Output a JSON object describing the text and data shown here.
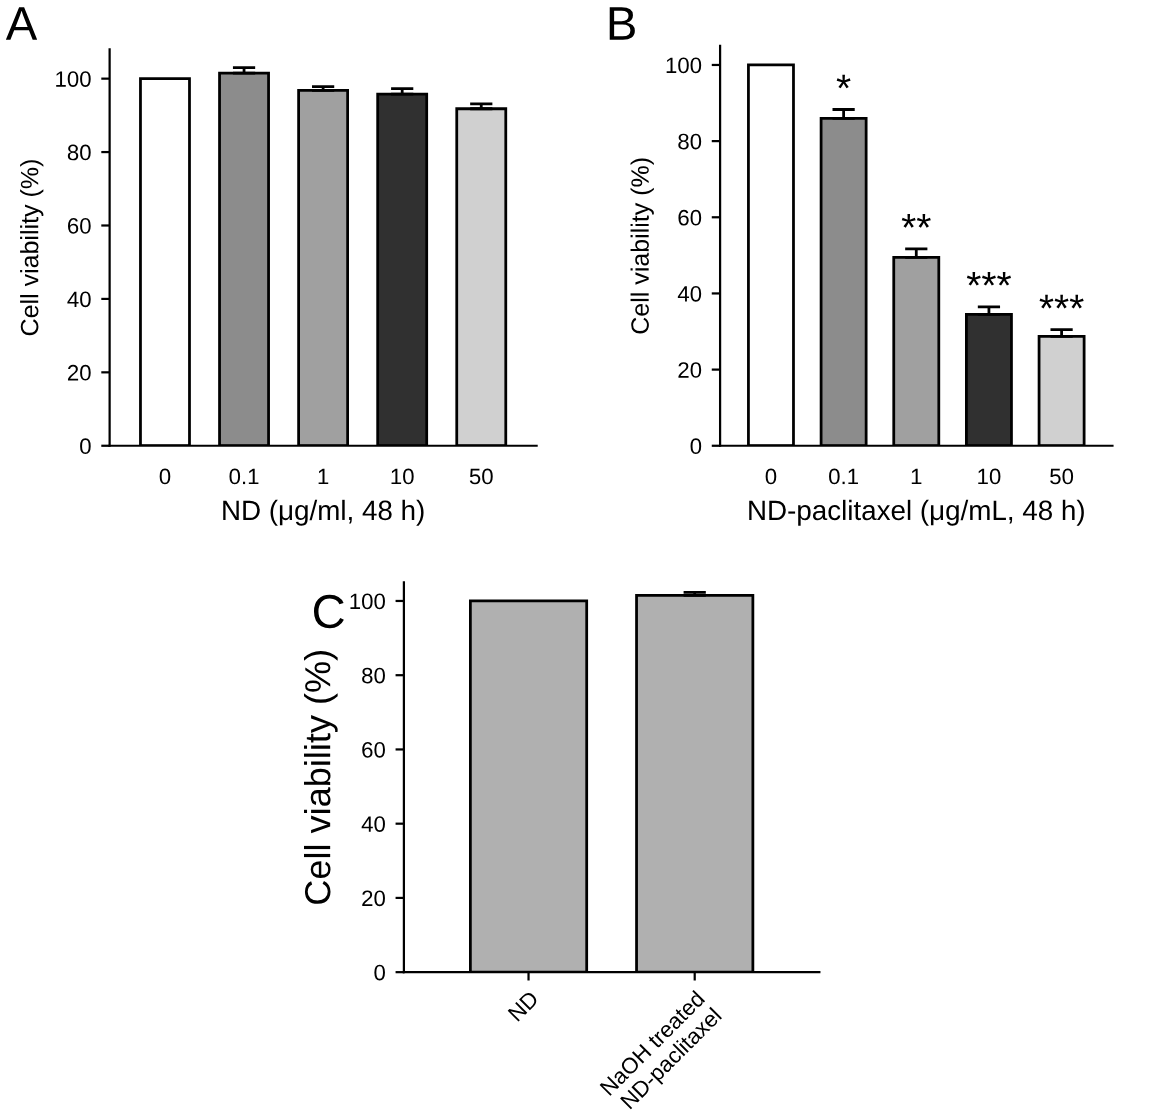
{
  "chart_data": [
    {
      "type": "bar",
      "title": "A",
      "xlabel": "ND (μg/ml, 48 h)",
      "ylabel": "Cell viability (%)",
      "categories": [
        "0",
        "0.1",
        "1",
        "10",
        "50"
      ],
      "values": [
        100,
        101.5,
        96.8,
        95.8,
        91.8
      ],
      "errors": [
        null,
        1.5,
        1,
        1.5,
        1.3
      ],
      "colors": [
        "#ffffff",
        "#8c8c8c",
        "#a0a0a0",
        "#303030",
        "#d0d0d0"
      ],
      "ylim": [
        0,
        108
      ],
      "yticks": [
        0,
        20,
        40,
        60,
        80,
        100
      ]
    },
    {
      "type": "bar",
      "title": "B",
      "xlabel": "ND-paclitaxel (μg/mL, 48 h)",
      "ylabel": "Cell viability (%)",
      "categories": [
        "0",
        "0.1",
        "1",
        "10",
        "50"
      ],
      "values": [
        100,
        86,
        49.5,
        34.5,
        28.7
      ],
      "errors": [
        null,
        2.3,
        2.2,
        2,
        1.8
      ],
      "colors": [
        "#ffffff",
        "#8c8c8c",
        "#a0a0a0",
        "#303030",
        "#d0d0d0"
      ],
      "ylim": [
        0,
        105
      ],
      "yticks": [
        0,
        20,
        40,
        60,
        80,
        100
      ],
      "annotations": [
        {
          "text": "*",
          "x": "0.1",
          "y": 88.3
        },
        {
          "text": "**",
          "x": "1",
          "y": 51.7
        },
        {
          "text": "***",
          "x": "10",
          "y": 36.5
        },
        {
          "text": "***",
          "x": "50",
          "y": 30.5
        }
      ]
    },
    {
      "type": "bar",
      "title": "C",
      "ylabel": "Cell viability (%)",
      "categories": [
        "ND",
        "NaOH treated\nND-paclitaxel"
      ],
      "values": [
        100,
        101.5
      ],
      "errors": [
        null,
        0.8
      ],
      "colors": [
        "#b0b0b0",
        "#b0b0b0"
      ],
      "ylim": [
        0,
        105
      ],
      "yticks": [
        0,
        20,
        40,
        60,
        80,
        100
      ]
    }
  ]
}
